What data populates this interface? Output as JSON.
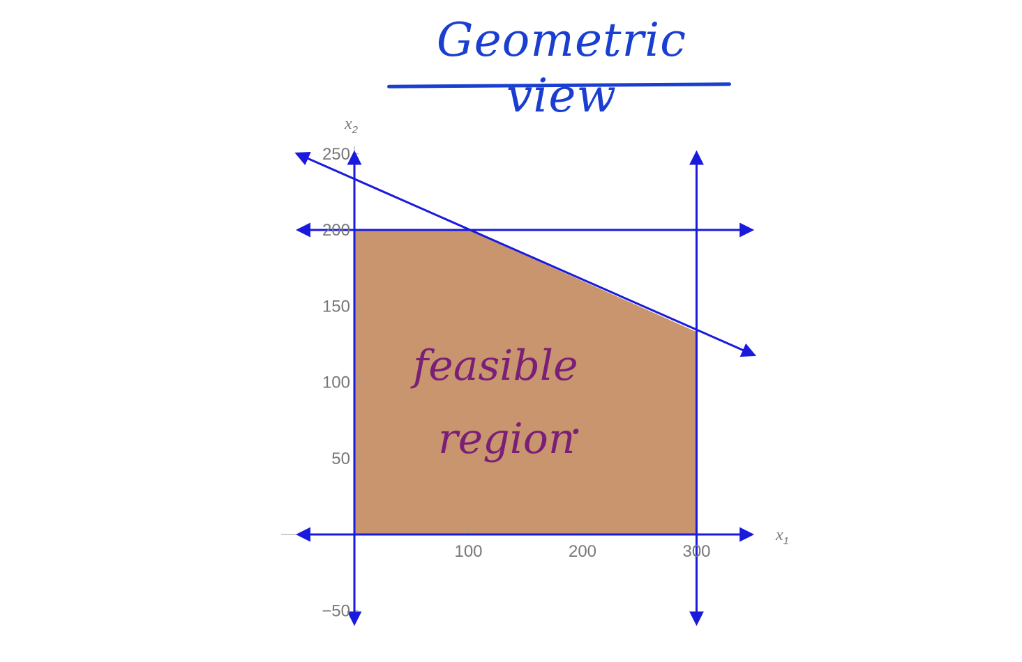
{
  "title": "Geometric view",
  "axes": {
    "x_name": "x",
    "x_subscript": "1",
    "y_name": "x",
    "y_subscript": "2"
  },
  "annotation": {
    "line1": "feasible",
    "line2": "region",
    "dot": "·"
  },
  "colors": {
    "title": "#1a3fd0",
    "constraint_lines": "#1a1adc",
    "feasible_fill": "#c9956f",
    "annotation": "#7a1f78",
    "axis_text": "#777777"
  },
  "chart_data": {
    "type": "line",
    "x_ticks": [
      100,
      200,
      300
    ],
    "y_ticks": [
      -50,
      50,
      100,
      150,
      200,
      250
    ],
    "xlim": [
      -58,
      348
    ],
    "ylim": [
      -60,
      255
    ],
    "constraints": [
      {
        "kind": "vertical",
        "x": 0
      },
      {
        "kind": "vertical",
        "x": 300
      },
      {
        "kind": "horizontal",
        "y": 0
      },
      {
        "kind": "horizontal",
        "y": 200
      },
      {
        "kind": "sloped",
        "points": [
          [
            -50,
            250
          ],
          [
            350,
            118
          ]
        ]
      }
    ],
    "feasible_region": [
      [
        0,
        0
      ],
      [
        300,
        0
      ],
      [
        300,
        133
      ],
      [
        100,
        200
      ],
      [
        0,
        200
      ]
    ]
  }
}
